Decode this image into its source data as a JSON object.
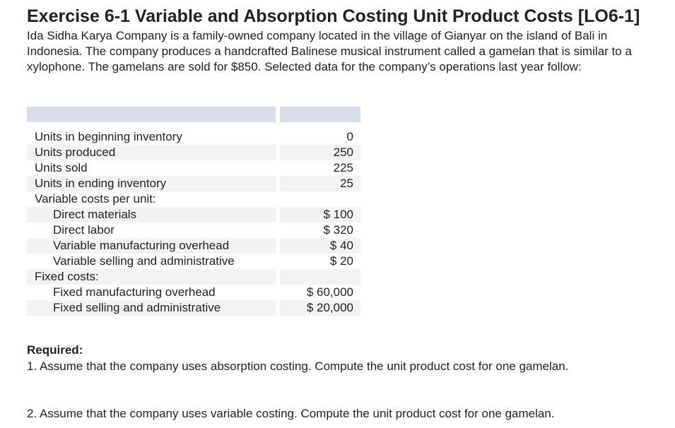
{
  "title": "Exercise 6-1 Variable and Absorption Costing Unit Product Costs [LO6-1]",
  "intro": "Ida Sidha Karya Company is a family-owned company located in the village of Gianyar on the island of Bali in Indonesia. The company produces a handcrafted Balinese musical instrument called a gamelan that is similar to a xylophone. The gamelans are sold for $850. Selected data for the company’s operations last year follow:",
  "table": {
    "rows": [
      {
        "label": "Units in beginning inventory",
        "value": "0"
      },
      {
        "label": "Units produced",
        "value": "250"
      },
      {
        "label": "Units sold",
        "value": "225"
      },
      {
        "label": "Units in ending inventory",
        "value": "25"
      },
      {
        "label": "Variable costs per unit:",
        "value": ""
      },
      {
        "label": "Direct materials",
        "value": "$ 100"
      },
      {
        "label": "Direct labor",
        "value": "$ 320"
      },
      {
        "label": "Variable manufacturing overhead",
        "value": "$ 40"
      },
      {
        "label": "Variable selling and administrative",
        "value": "$ 20"
      },
      {
        "label": "Fixed costs:",
        "value": ""
      },
      {
        "label": "Fixed manufacturing overhead",
        "value": "$ 60,000"
      },
      {
        "label": "Fixed selling and administrative",
        "value": "$ 20,000"
      }
    ]
  },
  "required": {
    "heading": "Required:",
    "items": [
      "1.  Assume that the company uses absorption costing. Compute the unit product cost for one gamelan.",
      "2.  Assume that the company uses variable costing. Compute the unit product cost for one gamelan."
    ]
  }
}
